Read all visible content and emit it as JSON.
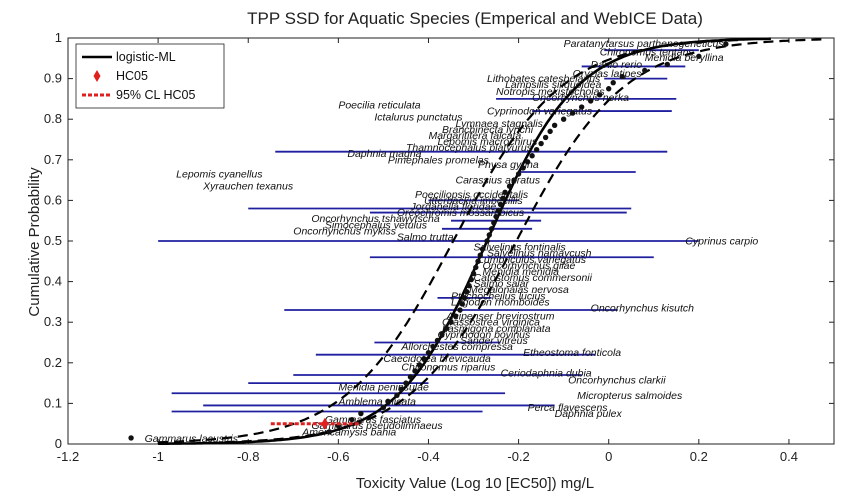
{
  "chart_data": {
    "type": "scatter",
    "title": "TPP SSD for Aquatic Species (Emperical and WebICE Data)",
    "xlabel": "Toxicity Value (Log 10 [EC50]) mg/L",
    "ylabel": "Cumulative Probability",
    "xlim": [
      -1.2,
      0.5
    ],
    "ylim": [
      0,
      1
    ],
    "xticks": [
      "-1.2",
      "-1",
      "-0.8",
      "-0.6",
      "-0.4",
      "-0.2",
      "0",
      "0.2",
      "0.4"
    ],
    "yticks": [
      "0",
      "0.1",
      "0.2",
      "0.3",
      "0.4",
      "0.5",
      "0.6",
      "0.7",
      "0.8",
      "0.9",
      "1"
    ],
    "legend": {
      "position": "top-left",
      "entries": [
        "logistic-ML",
        "HC05",
        "95% CL HC05"
      ]
    },
    "colors": {
      "fit": "#000000",
      "ci": "#000000",
      "bars": "#1f1fa0",
      "hc05": "#e0201f",
      "points": "#111111"
    },
    "logistic": {
      "mu": -0.27,
      "s": 0.1
    },
    "ci_bands": {
      "lower_shift": 0.065,
      "upper_shift": -0.075,
      "s": 0.12
    },
    "hc05": {
      "x": -0.63,
      "y": 0.05,
      "cl_low": -0.75,
      "cl_high": -0.55
    },
    "points": [
      {
        "x": -1.06,
        "y": 0.015
      },
      {
        "x": -0.62,
        "y": 0.03
      },
      {
        "x": -0.6,
        "y": 0.045
      },
      {
        "x": -0.57,
        "y": 0.06
      },
      {
        "x": -0.55,
        "y": 0.075
      },
      {
        "x": -0.5,
        "y": 0.09
      },
      {
        "x": -0.49,
        "y": 0.105
      },
      {
        "x": -0.47,
        "y": 0.12
      },
      {
        "x": -0.46,
        "y": 0.135
      },
      {
        "x": -0.45,
        "y": 0.15
      },
      {
        "x": -0.44,
        "y": 0.165
      },
      {
        "x": -0.43,
        "y": 0.18
      },
      {
        "x": -0.42,
        "y": 0.195
      },
      {
        "x": -0.41,
        "y": 0.21
      },
      {
        "x": -0.4,
        "y": 0.225
      },
      {
        "x": -0.39,
        "y": 0.24
      },
      {
        "x": -0.38,
        "y": 0.255
      },
      {
        "x": -0.37,
        "y": 0.27
      },
      {
        "x": -0.36,
        "y": 0.285
      },
      {
        "x": -0.35,
        "y": 0.3
      },
      {
        "x": -0.34,
        "y": 0.315
      },
      {
        "x": -0.33,
        "y": 0.33
      },
      {
        "x": -0.325,
        "y": 0.345
      },
      {
        "x": -0.32,
        "y": 0.36
      },
      {
        "x": -0.315,
        "y": 0.375
      },
      {
        "x": -0.31,
        "y": 0.39
      },
      {
        "x": -0.305,
        "y": 0.405
      },
      {
        "x": -0.3,
        "y": 0.42
      },
      {
        "x": -0.295,
        "y": 0.435
      },
      {
        "x": -0.29,
        "y": 0.45
      },
      {
        "x": -0.285,
        "y": 0.465
      },
      {
        "x": -0.28,
        "y": 0.48
      },
      {
        "x": -0.27,
        "y": 0.5
      },
      {
        "x": -0.265,
        "y": 0.515
      },
      {
        "x": -0.26,
        "y": 0.53
      },
      {
        "x": -0.255,
        "y": 0.545
      },
      {
        "x": -0.25,
        "y": 0.56
      },
      {
        "x": -0.245,
        "y": 0.575
      },
      {
        "x": -0.24,
        "y": 0.59
      },
      {
        "x": -0.235,
        "y": 0.605
      },
      {
        "x": -0.23,
        "y": 0.62
      },
      {
        "x": -0.22,
        "y": 0.635
      },
      {
        "x": -0.21,
        "y": 0.65
      },
      {
        "x": -0.2,
        "y": 0.665
      },
      {
        "x": -0.19,
        "y": 0.68
      },
      {
        "x": -0.18,
        "y": 0.695
      },
      {
        "x": -0.17,
        "y": 0.71
      },
      {
        "x": -0.16,
        "y": 0.725
      },
      {
        "x": -0.15,
        "y": 0.74
      },
      {
        "x": -0.14,
        "y": 0.755
      },
      {
        "x": -0.13,
        "y": 0.77
      },
      {
        "x": -0.12,
        "y": 0.785
      },
      {
        "x": -0.1,
        "y": 0.8
      },
      {
        "x": -0.08,
        "y": 0.815
      },
      {
        "x": -0.06,
        "y": 0.83
      },
      {
        "x": -0.04,
        "y": 0.845
      },
      {
        "x": -0.02,
        "y": 0.86
      },
      {
        "x": 0.0,
        "y": 0.875
      },
      {
        "x": 0.01,
        "y": 0.89
      },
      {
        "x": 0.03,
        "y": 0.905
      },
      {
        "x": 0.08,
        "y": 0.92
      },
      {
        "x": 0.13,
        "y": 0.935
      },
      {
        "x": 0.2,
        "y": 0.955
      },
      {
        "x": 0.26,
        "y": 0.985
      }
    ],
    "intervals": [
      {
        "y": 0.97,
        "lo": -0.01,
        "hi": 0.2
      },
      {
        "y": 0.93,
        "lo": -0.06,
        "hi": 0.17
      },
      {
        "y": 0.9,
        "lo": -0.01,
        "hi": 0.13
      },
      {
        "y": 0.85,
        "lo": -0.25,
        "hi": 0.15
      },
      {
        "y": 0.82,
        "lo": -0.17,
        "hi": 0.14
      },
      {
        "y": 0.72,
        "lo": -0.74,
        "hi": 0.13
      },
      {
        "y": 0.67,
        "lo": -0.2,
        "hi": 0.06
      },
      {
        "y": 0.58,
        "lo": -0.8,
        "hi": 0.05
      },
      {
        "y": 0.57,
        "lo": -0.53,
        "hi": 0.04
      },
      {
        "y": 0.5,
        "lo": -1.0,
        "hi": 0.2
      },
      {
        "y": 0.46,
        "lo": -0.53,
        "hi": 0.1
      },
      {
        "y": 0.53,
        "lo": -0.37,
        "hi": -0.17
      },
      {
        "y": 0.55,
        "lo": -0.35,
        "hi": -0.15
      },
      {
        "y": 0.6,
        "lo": -0.4,
        "hi": -0.2
      },
      {
        "y": 0.36,
        "lo": -0.38,
        "hi": -0.26
      },
      {
        "y": 0.33,
        "lo": -0.72,
        "hi": 0.02
      },
      {
        "y": 0.25,
        "lo": -0.52,
        "hi": -0.24
      },
      {
        "y": 0.22,
        "lo": -0.65,
        "hi": -0.03
      },
      {
        "y": 0.17,
        "lo": -0.7,
        "hi": -0.06
      },
      {
        "y": 0.15,
        "lo": -0.8,
        "hi": -0.4
      },
      {
        "y": 0.125,
        "lo": -0.97,
        "hi": -0.23
      },
      {
        "y": 0.095,
        "lo": -0.9,
        "hi": -0.12
      },
      {
        "y": 0.08,
        "lo": -0.97,
        "hi": -0.28
      }
    ],
    "annotations": [
      {
        "text": "Paratanytarsus parthenogeneticus",
        "x": -0.1,
        "y": 0.987
      },
      {
        "text": "Chironomus tentans",
        "x": -0.02,
        "y": 0.965
      },
      {
        "text": "Menidia beryllina",
        "x": 0.08,
        "y": 0.952
      },
      {
        "text": "Danio rerio",
        "x": -0.04,
        "y": 0.935
      },
      {
        "text": "Oryzias latipes",
        "x": -0.08,
        "y": 0.912
      },
      {
        "text": "Lithobates catesbeianus",
        "x": -0.27,
        "y": 0.9
      },
      {
        "text": "Lampsilis siliquoidea",
        "x": -0.23,
        "y": 0.885
      },
      {
        "text": "Notropis mekistocholas",
        "x": -0.25,
        "y": 0.868
      },
      {
        "text": "Oncorhynchus nerka",
        "x": -0.17,
        "y": 0.853
      },
      {
        "text": "Poecilia reticulata",
        "x": -0.6,
        "y": 0.835
      },
      {
        "text": "Cyprinodon variegatus",
        "x": -0.27,
        "y": 0.82
      },
      {
        "text": "Ictalurus punctatus",
        "x": -0.52,
        "y": 0.805
      },
      {
        "text": "Lymnaea stagnalis",
        "x": -0.34,
        "y": 0.79
      },
      {
        "text": "Branchinecta lynchi",
        "x": -0.37,
        "y": 0.775
      },
      {
        "text": "Margaritifera falcata",
        "x": -0.4,
        "y": 0.76
      },
      {
        "text": "Lepomis macrochirus",
        "x": -0.38,
        "y": 0.745
      },
      {
        "text": "Thamnocephalus platyurus",
        "x": -0.45,
        "y": 0.73
      },
      {
        "text": "Daphnia magna",
        "x": -0.58,
        "y": 0.715
      },
      {
        "text": "Pimephales promelas",
        "x": -0.49,
        "y": 0.7
      },
      {
        "text": "Physa gyrina",
        "x": -0.29,
        "y": 0.688
      },
      {
        "text": "Lepomis cyanellus",
        "x": -0.96,
        "y": 0.665
      },
      {
        "text": "Carassius auratus",
        "x": -0.34,
        "y": 0.65
      },
      {
        "text": "Xyrauchen texanus",
        "x": -0.9,
        "y": 0.635
      },
      {
        "text": "Poeciliopsis occidentalis",
        "x": -0.43,
        "y": 0.615
      },
      {
        "text": "Utterbackia imbecillis",
        "x": -0.41,
        "y": 0.6
      },
      {
        "text": "Jordanella floridae",
        "x": -0.44,
        "y": 0.585
      },
      {
        "text": "Oreochromis mossambicus",
        "x": -0.47,
        "y": 0.57
      },
      {
        "text": "Oncorhynchus tshawytscha",
        "x": -0.66,
        "y": 0.555
      },
      {
        "text": "Simocephalus vetulus",
        "x": -0.63,
        "y": 0.54
      },
      {
        "text": "Oncorhynchus mykiss",
        "x": -0.7,
        "y": 0.525
      },
      {
        "text": "Salmo trutta",
        "x": -0.47,
        "y": 0.51
      },
      {
        "text": "Cyprinus carpio",
        "x": 0.17,
        "y": 0.5
      },
      {
        "text": "Salvelinus fontinalis",
        "x": -0.3,
        "y": 0.485
      },
      {
        "text": "Salvelinus namaycush",
        "x": -0.27,
        "y": 0.47
      },
      {
        "text": "Lumbriculus variegatus",
        "x": -0.29,
        "y": 0.455
      },
      {
        "text": "Oncorhynchus gilae",
        "x": -0.28,
        "y": 0.44
      },
      {
        "text": "Menidia menidia",
        "x": -0.28,
        "y": 0.425
      },
      {
        "text": "Catostomus commersonii",
        "x": -0.3,
        "y": 0.41
      },
      {
        "text": "Salmo salar",
        "x": -0.3,
        "y": 0.395
      },
      {
        "text": "Megalonaias nervosa",
        "x": -0.31,
        "y": 0.38
      },
      {
        "text": "Ptychocheilus lucius",
        "x": -0.35,
        "y": 0.365
      },
      {
        "text": "Lagodon rhomboides",
        "x": -0.35,
        "y": 0.35
      },
      {
        "text": "Oncorhynchus kisutch",
        "x": -0.04,
        "y": 0.335
      },
      {
        "text": "Acipenser brevirostrum",
        "x": -0.36,
        "y": 0.315
      },
      {
        "text": "Crassostrea virginica",
        "x": -0.37,
        "y": 0.3
      },
      {
        "text": "Lasmigona complanata",
        "x": -0.37,
        "y": 0.285
      },
      {
        "text": "Cyprinodon bovinus",
        "x": -0.38,
        "y": 0.27
      },
      {
        "text": "Sander vitreus",
        "x": -0.33,
        "y": 0.255
      },
      {
        "text": "Allorchestes compressa",
        "x": -0.46,
        "y": 0.24
      },
      {
        "text": "Etheostoma fonticola",
        "x": -0.19,
        "y": 0.225
      },
      {
        "text": "Caecidotea brevicauda",
        "x": -0.5,
        "y": 0.21
      },
      {
        "text": "Chironomus riparius",
        "x": -0.46,
        "y": 0.19
      },
      {
        "text": "Ceriodaphnia dubia",
        "x": -0.24,
        "y": 0.175
      },
      {
        "text": "Oncorhynchus clarkii",
        "x": -0.09,
        "y": 0.158
      },
      {
        "text": "Menidia peninsulae",
        "x": -0.6,
        "y": 0.14
      },
      {
        "text": "Micropterus salmoides",
        "x": -0.07,
        "y": 0.12
      },
      {
        "text": "Amblema plicata",
        "x": -0.6,
        "y": 0.105
      },
      {
        "text": "Perca flavescens",
        "x": -0.18,
        "y": 0.09
      },
      {
        "text": "Daphnia pulex",
        "x": -0.12,
        "y": 0.075
      },
      {
        "text": "Gammarus fasciatus",
        "x": -0.63,
        "y": 0.06
      },
      {
        "text": "Gammarus pseudolimnaeus",
        "x": -0.66,
        "y": 0.045
      },
      {
        "text": "Americamysis bahia",
        "x": -0.68,
        "y": 0.03
      },
      {
        "text": "Gammarus lacustris",
        "x": -1.03,
        "y": 0.013
      }
    ]
  }
}
